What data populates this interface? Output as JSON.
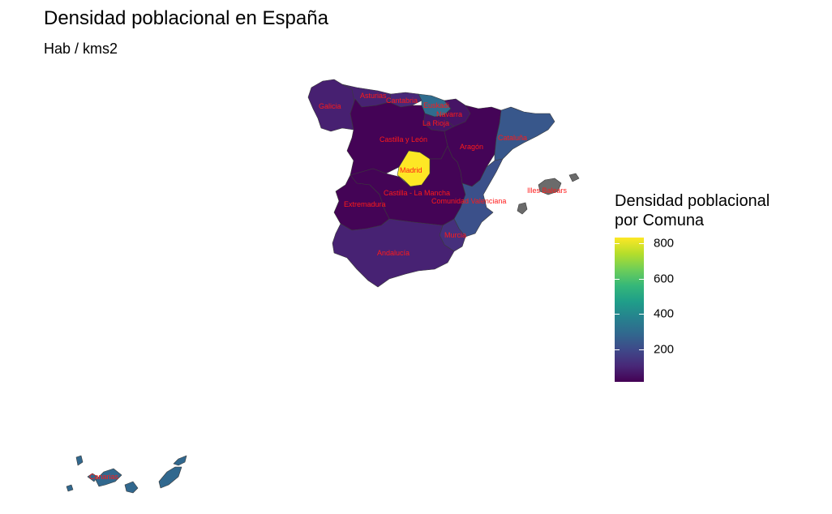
{
  "title": "Densidad poblacional en España",
  "subtitle": "Hab / kms2",
  "legend": {
    "title_line1": "Densidad poblacional",
    "title_line2": "por Comuna",
    "min": 20,
    "max": 830,
    "ticks": [
      {
        "value": 200,
        "label": "200"
      },
      {
        "value": 400,
        "label": "400"
      },
      {
        "value": 600,
        "label": "600"
      },
      {
        "value": 800,
        "label": "800"
      }
    ]
  },
  "colors": {
    "viridis": [
      "#440154",
      "#482878",
      "#3e4989",
      "#31688e",
      "#26828e",
      "#1f9e89",
      "#35b779",
      "#6ece58",
      "#b5de2b",
      "#fde725"
    ],
    "no_data": "#6b6b6b",
    "label": "#ff1a1a"
  },
  "regions": [
    {
      "id": "galicia",
      "label": "Galicia",
      "density": 92
    },
    {
      "id": "asturias",
      "label": "Asturias",
      "density": 96
    },
    {
      "id": "cantabria",
      "label": "Cantabria",
      "density": 110
    },
    {
      "id": "euskadi",
      "label": "Euskadi",
      "density": 305
    },
    {
      "id": "navarra",
      "label": "Navarra",
      "density": 63
    },
    {
      "id": "la-rioja",
      "label": "La Rioja",
      "density": 63
    },
    {
      "id": "castilla-y-leon",
      "label": "Castilla y León",
      "density": 25
    },
    {
      "id": "aragon",
      "label": "Aragón",
      "density": 28
    },
    {
      "id": "cataluna",
      "label": "Cataluña",
      "density": 240
    },
    {
      "id": "madrid",
      "label": "Madrid",
      "density": 830
    },
    {
      "id": "castilla-la-mancha",
      "label": "Castilla - La Mancha",
      "density": 26
    },
    {
      "id": "extremadura",
      "label": "Extremadura",
      "density": 26
    },
    {
      "id": "comunidad-valenciana",
      "label": "Comunidad Valenciana",
      "density": 220
    },
    {
      "id": "murcia",
      "label": "Murcia",
      "density": 132
    },
    {
      "id": "andalucia",
      "label": "Andalucía",
      "density": 97
    },
    {
      "id": "illes-balears",
      "label": "Illes Balears",
      "density": null
    },
    {
      "id": "canarias",
      "label": "Canarias",
      "density": 290
    }
  ]
}
